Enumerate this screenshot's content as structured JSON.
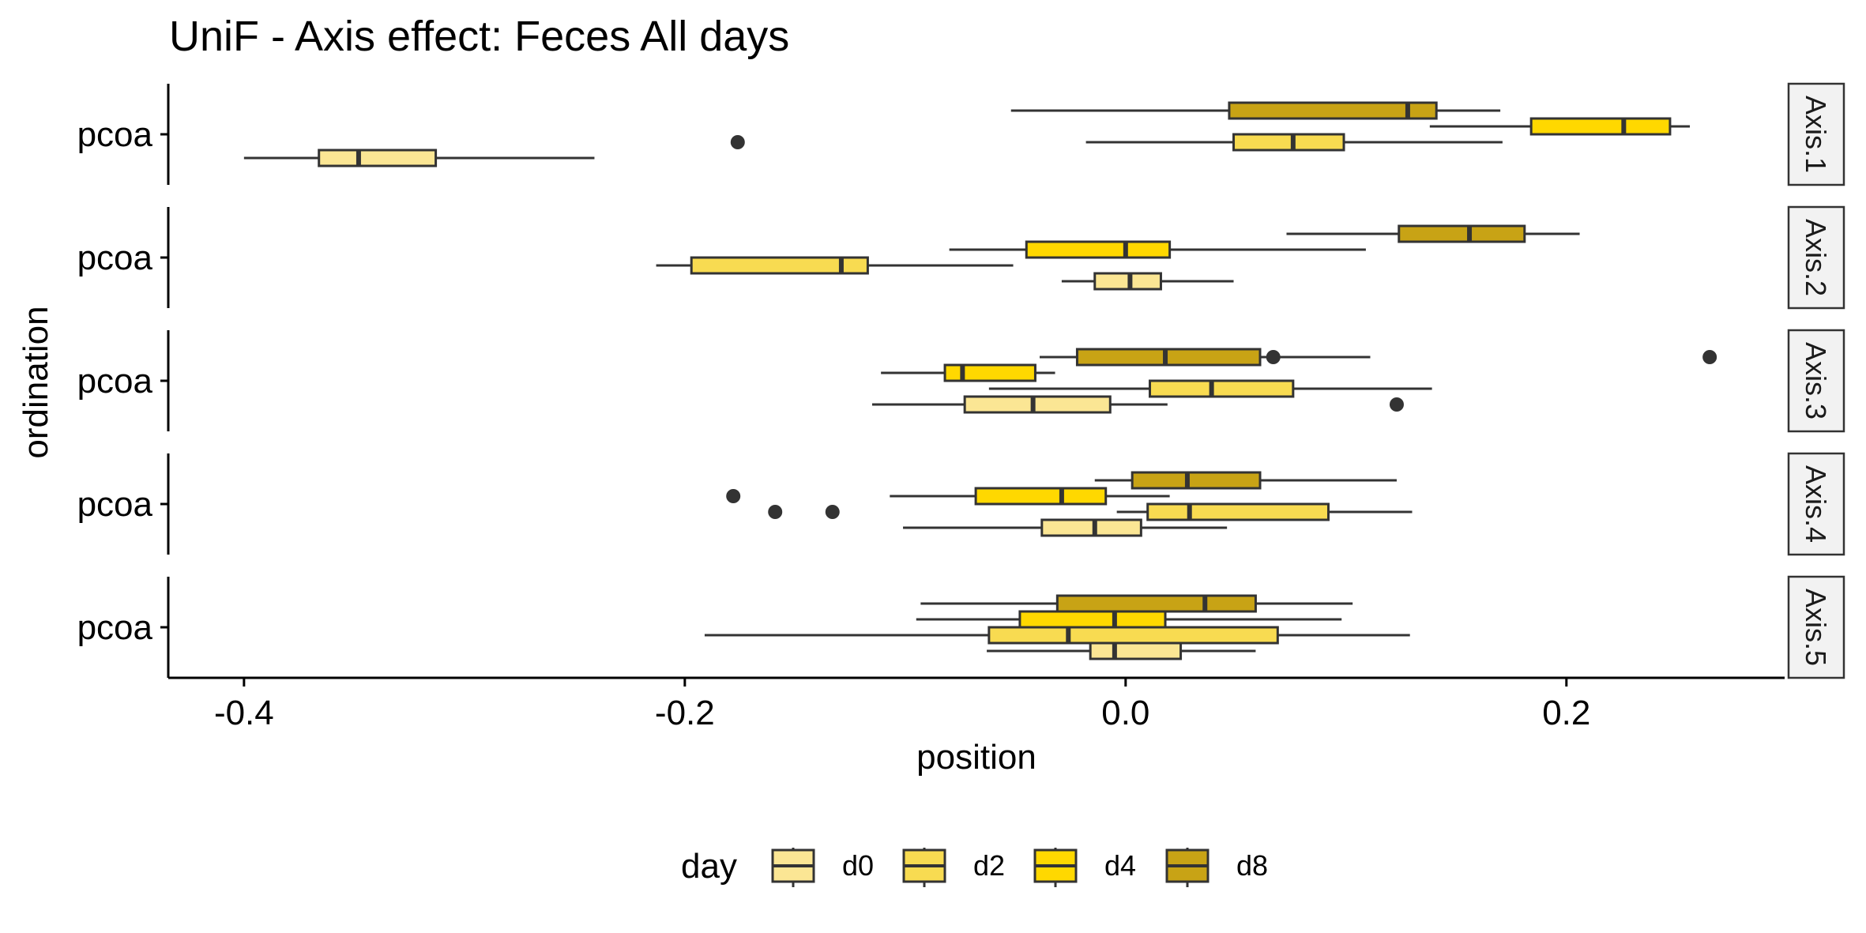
{
  "chart_data": {
    "type": "boxplot",
    "title": "UniF - Axis effect: Feces All days",
    "xlabel": "position",
    "ylabel": "ordination",
    "xlim": [
      -0.434,
      0.299
    ],
    "x_ticks": [
      -0.4,
      -0.2,
      0.0,
      0.2
    ],
    "x_tick_labels": [
      "-0.4",
      "-0.2",
      "0.0",
      "0.2"
    ],
    "grid": false,
    "legend": {
      "title": "day",
      "position": "bottom",
      "entries": [
        {
          "name": "d0",
          "color": "#FBE694"
        },
        {
          "name": "d2",
          "color": "#F8DB51"
        },
        {
          "name": "d4",
          "color": "#FFD800"
        },
        {
          "name": "d8",
          "color": "#C8A315"
        }
      ]
    },
    "facets": [
      {
        "strip": "Axis.1",
        "category": "pcoa",
        "boxes": [
          {
            "day": "d0",
            "whisker_low": -0.4,
            "q1": -0.366,
            "median": -0.348,
            "q3": -0.313,
            "whisker_high": -0.241,
            "outliers": []
          },
          {
            "day": "d2",
            "whisker_low": -0.018,
            "q1": 0.049,
            "median": 0.076,
            "q3": 0.099,
            "whisker_high": 0.171,
            "outliers": [
              -0.176
            ]
          },
          {
            "day": "d4",
            "whisker_low": 0.138,
            "q1": 0.184,
            "median": 0.226,
            "q3": 0.247,
            "whisker_high": 0.256,
            "outliers": []
          },
          {
            "day": "d8",
            "whisker_low": -0.052,
            "q1": 0.047,
            "median": 0.128,
            "q3": 0.141,
            "whisker_high": 0.17,
            "outliers": []
          }
        ]
      },
      {
        "strip": "Axis.2",
        "category": "pcoa",
        "boxes": [
          {
            "day": "d0",
            "whisker_low": -0.029,
            "q1": -0.014,
            "median": 0.002,
            "q3": 0.016,
            "whisker_high": 0.049,
            "outliers": []
          },
          {
            "day": "d2",
            "whisker_low": -0.213,
            "q1": -0.197,
            "median": -0.129,
            "q3": -0.117,
            "whisker_high": -0.051,
            "outliers": []
          },
          {
            "day": "d4",
            "whisker_low": -0.08,
            "q1": -0.045,
            "median": 0.0,
            "q3": 0.02,
            "whisker_high": 0.109,
            "outliers": []
          },
          {
            "day": "d8",
            "whisker_low": 0.073,
            "q1": 0.124,
            "median": 0.156,
            "q3": 0.181,
            "whisker_high": 0.206,
            "outliers": []
          }
        ]
      },
      {
        "strip": "Axis.3",
        "category": "pcoa",
        "boxes": [
          {
            "day": "d0",
            "whisker_low": -0.115,
            "q1": -0.073,
            "median": -0.042,
            "q3": -0.007,
            "whisker_high": 0.019,
            "outliers": [
              0.123
            ]
          },
          {
            "day": "d2",
            "whisker_low": -0.062,
            "q1": 0.011,
            "median": 0.039,
            "q3": 0.076,
            "whisker_high": 0.139,
            "outliers": []
          },
          {
            "day": "d4",
            "whisker_low": -0.111,
            "q1": -0.082,
            "median": -0.074,
            "q3": -0.041,
            "whisker_high": -0.032,
            "outliers": []
          },
          {
            "day": "d8",
            "whisker_low": -0.039,
            "q1": -0.022,
            "median": 0.018,
            "q3": 0.061,
            "whisker_high": 0.111,
            "outliers": [
              0.067,
              0.265
            ]
          }
        ]
      },
      {
        "strip": "Axis.4",
        "category": "pcoa",
        "boxes": [
          {
            "day": "d0",
            "whisker_low": -0.101,
            "q1": -0.038,
            "median": -0.014,
            "q3": 0.007,
            "whisker_high": 0.046,
            "outliers": []
          },
          {
            "day": "d2",
            "whisker_low": -0.004,
            "q1": 0.01,
            "median": 0.029,
            "q3": 0.092,
            "whisker_high": 0.13,
            "outliers": [
              -0.159,
              -0.133
            ]
          },
          {
            "day": "d4",
            "whisker_low": -0.107,
            "q1": -0.068,
            "median": -0.029,
            "q3": -0.009,
            "whisker_high": 0.02,
            "outliers": [
              -0.178
            ]
          },
          {
            "day": "d8",
            "whisker_low": -0.014,
            "q1": 0.003,
            "median": 0.028,
            "q3": 0.061,
            "whisker_high": 0.123,
            "outliers": []
          }
        ]
      },
      {
        "strip": "Axis.5",
        "category": "pcoa",
        "boxes": [
          {
            "day": "d0",
            "whisker_low": -0.063,
            "q1": -0.016,
            "median": -0.005,
            "q3": 0.025,
            "whisker_high": 0.059,
            "outliers": []
          },
          {
            "day": "d2",
            "whisker_low": -0.191,
            "q1": -0.062,
            "median": -0.026,
            "q3": 0.069,
            "whisker_high": 0.129,
            "outliers": []
          },
          {
            "day": "d4",
            "whisker_low": -0.095,
            "q1": -0.048,
            "median": -0.005,
            "q3": 0.018,
            "whisker_high": 0.098,
            "outliers": []
          },
          {
            "day": "d8",
            "whisker_low": -0.093,
            "q1": -0.031,
            "median": 0.036,
            "q3": 0.059,
            "whisker_high": 0.103,
            "outliers": []
          }
        ]
      }
    ]
  }
}
